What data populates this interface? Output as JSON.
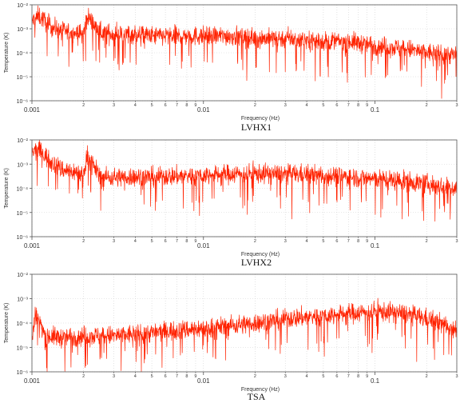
{
  "chart_data": [
    {
      "type": "line",
      "caption": "LVHX1",
      "xlabel": "Frequency (Hz)",
      "ylabel": "Temperature (K)",
      "x_scale": "log",
      "y_scale": "log",
      "xlim": [
        0.001,
        0.3
      ],
      "ylim": [
        1e-06,
        0.01
      ],
      "grid": true,
      "x_major_labels": [
        "0.001",
        "0.01",
        "0.1"
      ],
      "x_minor_labels": [
        "2",
        "3",
        "4",
        "5",
        "6",
        "7",
        "8",
        "9",
        "2",
        "3",
        "4",
        "5",
        "6",
        "7",
        "8",
        "9",
        "2",
        "3"
      ],
      "y_tick_labels": [
        "10⁻⁶",
        "10⁻⁵",
        "10⁻⁴",
        "10⁻³",
        "10⁻²"
      ],
      "series": [
        {
          "color": "#ff2200",
          "freq_hz": [
            0.001,
            0.0011,
            0.0013,
            0.0015,
            0.002,
            0.0021,
            0.0025,
            0.003,
            0.004,
            0.005,
            0.007,
            0.01,
            0.015,
            0.02,
            0.03,
            0.05,
            0.07,
            0.1,
            0.15,
            0.2,
            0.3
          ],
          "temperature_k": [
            0.002,
            0.0035,
            0.0012,
            0.0008,
            0.0006,
            0.0035,
            0.0007,
            0.0006,
            0.0006,
            0.0005,
            0.0005,
            0.0005,
            0.0005,
            0.0004,
            0.0004,
            0.0003,
            0.0003,
            0.0002,
            0.00015,
            0.0001,
            8e-05
          ]
        }
      ]
    },
    {
      "type": "line",
      "caption": "LVHX2",
      "xlabel": "Frequency (Hz)",
      "ylabel": "Temperature (K)",
      "x_scale": "log",
      "y_scale": "log",
      "xlim": [
        0.001,
        0.3
      ],
      "ylim": [
        1e-06,
        0.01
      ],
      "grid": true,
      "x_major_labels": [
        "0.001",
        "0.01",
        "0.1"
      ],
      "x_minor_labels": [
        "2",
        "3",
        "4",
        "5",
        "6",
        "7",
        "8",
        "9",
        "2",
        "3",
        "4",
        "5",
        "6",
        "7",
        "8",
        "9",
        "2",
        "3"
      ],
      "y_tick_labels": [
        "10⁻⁶",
        "10⁻⁵",
        "10⁻⁴",
        "10⁻³",
        "10⁻²"
      ],
      "series": [
        {
          "color": "#ff2200",
          "freq_hz": [
            0.001,
            0.0011,
            0.0013,
            0.0015,
            0.002,
            0.0021,
            0.0025,
            0.003,
            0.004,
            0.005,
            0.007,
            0.01,
            0.015,
            0.02,
            0.03,
            0.05,
            0.07,
            0.1,
            0.15,
            0.2,
            0.3
          ],
          "temperature_k": [
            0.003,
            0.004,
            0.0012,
            0.0006,
            0.0004,
            0.0025,
            0.0003,
            0.00028,
            0.0003,
            0.0003,
            0.00032,
            0.00035,
            0.0004,
            0.0004,
            0.0004,
            0.00035,
            0.0003,
            0.00025,
            0.0002,
            0.00015,
            0.0001
          ]
        }
      ]
    },
    {
      "type": "line",
      "caption": "TSA",
      "xlabel": "Frequency (Hz)",
      "ylabel": "Temperature (K)",
      "x_scale": "log",
      "y_scale": "log",
      "xlim": [
        0.001,
        0.3
      ],
      "ylim": [
        1e-06,
        0.01
      ],
      "grid": true,
      "x_major_labels": [
        "0.001",
        "0.01",
        "0.1"
      ],
      "x_minor_labels": [
        "2",
        "3",
        "4",
        "5",
        "6",
        "7",
        "8",
        "9",
        "2",
        "3",
        "4",
        "5",
        "6",
        "7",
        "8",
        "9",
        "2",
        "3"
      ],
      "y_tick_labels": [
        "10⁻⁶",
        "10⁻⁵",
        "10⁻⁴",
        "10⁻³",
        "10⁻²"
      ],
      "series": [
        {
          "color": "#ff2200",
          "freq_hz": [
            0.001,
            0.00105,
            0.0012,
            0.0015,
            0.002,
            0.003,
            0.005,
            0.007,
            0.01,
            0.015,
            0.02,
            0.03,
            0.05,
            0.07,
            0.1,
            0.15,
            0.2,
            0.3
          ],
          "temperature_k": [
            2e-05,
            0.00025,
            3e-05,
            2.5e-05,
            3e-05,
            3e-05,
            4e-05,
            5e-05,
            6e-05,
            8e-05,
            0.0001,
            0.00015,
            0.0002,
            0.00025,
            0.0003,
            0.00025,
            0.00015,
            6e-05
          ]
        }
      ]
    }
  ]
}
